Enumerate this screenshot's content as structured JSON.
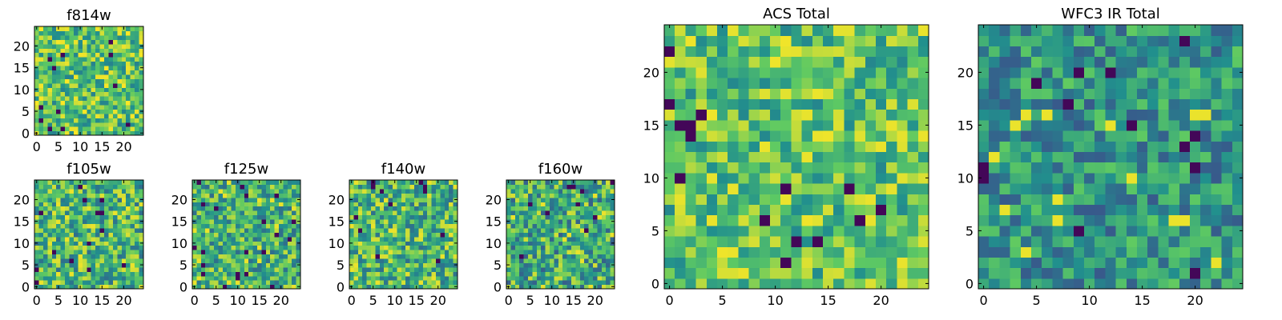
{
  "colormap": {
    "name": "viridis",
    "stops": [
      "#440154",
      "#3b528b",
      "#21908d",
      "#5dc963",
      "#fde725"
    ]
  },
  "chart_data": [
    {
      "id": "f814w",
      "type": "heatmap",
      "title": "f814w",
      "grid": [
        25,
        25
      ],
      "xlim": [
        0,
        24
      ],
      "ylim": [
        0,
        24
      ],
      "xticks": [
        "0",
        "5",
        "10",
        "15",
        "20"
      ],
      "yticks": [
        "0",
        "5",
        "10",
        "15",
        "20"
      ],
      "value_range": [
        0,
        1
      ],
      "pattern_seed": 11,
      "value_mean": 0.72,
      "value_spread": 0.28
    },
    {
      "id": "f105w",
      "type": "heatmap",
      "title": "f105w",
      "grid": [
        25,
        25
      ],
      "xlim": [
        0,
        24
      ],
      "ylim": [
        0,
        24
      ],
      "xticks": [
        "0",
        "5",
        "10",
        "15",
        "20"
      ],
      "yticks": [
        "0",
        "5",
        "10",
        "15",
        "20"
      ],
      "value_range": [
        0,
        1
      ],
      "pattern_seed": 23,
      "value_mean": 0.66,
      "value_spread": 0.3
    },
    {
      "id": "f125w",
      "type": "heatmap",
      "title": "f125w",
      "grid": [
        25,
        25
      ],
      "xlim": [
        0,
        24
      ],
      "ylim": [
        0,
        24
      ],
      "xticks": [
        "0",
        "5",
        "10",
        "15",
        "20"
      ],
      "yticks": [
        "0",
        "5",
        "10",
        "15",
        "20"
      ],
      "value_range": [
        0,
        1
      ],
      "pattern_seed": 37,
      "value_mean": 0.64,
      "value_spread": 0.28
    },
    {
      "id": "f140w",
      "type": "heatmap",
      "title": "f140w",
      "grid": [
        25,
        25
      ],
      "xlim": [
        0,
        24
      ],
      "ylim": [
        0,
        24
      ],
      "xticks": [
        "0",
        "5",
        "10",
        "15",
        "20"
      ],
      "yticks": [
        "0",
        "5",
        "10",
        "15",
        "20"
      ],
      "value_range": [
        0,
        1
      ],
      "pattern_seed": 41,
      "value_mean": 0.66,
      "value_spread": 0.3
    },
    {
      "id": "f160w",
      "type": "heatmap",
      "title": "f160w",
      "grid": [
        25,
        25
      ],
      "xlim": [
        0,
        24
      ],
      "ylim": [
        0,
        24
      ],
      "xticks": [
        "0",
        "5",
        "10",
        "15",
        "20"
      ],
      "yticks": [
        "0",
        "5",
        "10",
        "15",
        "20"
      ],
      "value_range": [
        0,
        1
      ],
      "pattern_seed": 53,
      "value_mean": 0.62,
      "value_spread": 0.32
    },
    {
      "id": "acs_total",
      "type": "heatmap",
      "title": "ACS Total",
      "grid": [
        25,
        25
      ],
      "xlim": [
        0,
        24
      ],
      "ylim": [
        0,
        24
      ],
      "xticks": [
        "0",
        "5",
        "10",
        "15",
        "20"
      ],
      "yticks": [
        "0",
        "5",
        "10",
        "15",
        "20"
      ],
      "value_range": [
        0,
        1
      ],
      "pattern_seed": 67,
      "value_mean": 0.72,
      "value_spread": 0.26
    },
    {
      "id": "wfc3_ir_total",
      "type": "heatmap",
      "title": "WFC3 IR Total",
      "grid": [
        25,
        25
      ],
      "xlim": [
        0,
        24
      ],
      "ylim": [
        0,
        24
      ],
      "xticks": [
        "0",
        "5",
        "10",
        "15",
        "20"
      ],
      "yticks": [
        "0",
        "5",
        "10",
        "15",
        "20"
      ],
      "value_range": [
        0,
        1
      ],
      "pattern_seed": 79,
      "value_mean": 0.52,
      "value_spread": 0.24
    }
  ]
}
